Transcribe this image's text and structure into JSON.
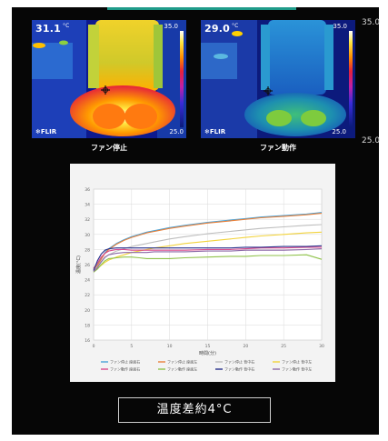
{
  "thermal_left": {
    "reading": "31.1",
    "reading_prefix": "",
    "unit": "°C",
    "scale_max": "35.0",
    "scale_min": "25.0",
    "brand": "FLIR",
    "caption": "ファン停止"
  },
  "thermal_right": {
    "reading": "29.0",
    "reading_prefix": "",
    "unit": "°C",
    "scale_max": "35.0",
    "scale_min": "25.0",
    "brand": "FLIR",
    "caption": "ファン動作"
  },
  "outer_scale": {
    "max": "35.0",
    "min": "25.0"
  },
  "summary": "温度差約4°C",
  "chart_data": {
    "type": "line",
    "title": "",
    "xlabel": "時間(分)",
    "ylabel": "温度(°C)",
    "xlim": [
      0,
      30
    ],
    "ylim": [
      16,
      36
    ],
    "xticks": [
      0,
      5,
      10,
      15,
      20,
      25,
      30
    ],
    "yticks": [
      16,
      18,
      20,
      22,
      24,
      26,
      28,
      30,
      32,
      34,
      36
    ],
    "grid": true,
    "legend_position": "bottom",
    "x": [
      0,
      0.5,
      1,
      1.5,
      2,
      3,
      4,
      5,
      6,
      7,
      8,
      10,
      12,
      15,
      18,
      20,
      22,
      25,
      28,
      30
    ],
    "series": [
      {
        "name": "ファン停止 座面右",
        "color": "#4aa3d8",
        "values": [
          25.5,
          26.0,
          26.8,
          27.6,
          28.1,
          28.8,
          29.3,
          29.7,
          30.0,
          30.3,
          30.5,
          30.9,
          31.2,
          31.6,
          31.9,
          32.1,
          32.3,
          32.5,
          32.7,
          32.9
        ]
      },
      {
        "name": "ファン停止 座面左",
        "color": "#e8803a",
        "values": [
          25.4,
          25.9,
          26.7,
          27.5,
          28.0,
          28.7,
          29.2,
          29.6,
          29.9,
          30.2,
          30.4,
          30.8,
          31.1,
          31.5,
          31.8,
          32.0,
          32.2,
          32.4,
          32.6,
          32.8
        ]
      },
      {
        "name": "ファン停止 背中右",
        "color": "#bdbdbd",
        "values": [
          25.3,
          25.7,
          26.3,
          26.9,
          27.3,
          27.8,
          28.1,
          28.4,
          28.6,
          28.8,
          29.0,
          29.4,
          29.7,
          30.1,
          30.4,
          30.6,
          30.8,
          31.0,
          31.2,
          31.3
        ]
      },
      {
        "name": "ファン停止 背中左",
        "color": "#f2d33c",
        "values": [
          25.2,
          25.5,
          25.9,
          26.3,
          26.6,
          27.0,
          27.3,
          27.6,
          27.8,
          28.0,
          28.2,
          28.5,
          28.8,
          29.1,
          29.4,
          29.6,
          29.8,
          30.0,
          30.2,
          30.3
        ]
      },
      {
        "name": "ファン動作 座面右",
        "color": "#d94a8c",
        "values": [
          25.5,
          26.2,
          27.0,
          27.5,
          27.8,
          28.0,
          28.0,
          27.9,
          27.9,
          27.9,
          27.9,
          27.9,
          27.9,
          28.0,
          28.0,
          28.1,
          28.2,
          28.2,
          28.3,
          28.3
        ]
      },
      {
        "name": "ファン動作 座面左",
        "color": "#8fc24a",
        "values": [
          25.0,
          25.4,
          26.0,
          26.5,
          26.8,
          26.9,
          27.0,
          27.0,
          26.9,
          26.8,
          26.8,
          26.8,
          26.9,
          27.0,
          27.1,
          27.1,
          27.2,
          27.2,
          27.3,
          26.7
        ]
      },
      {
        "name": "ファン動作 背中右",
        "color": "#262f8a",
        "values": [
          25.2,
          26.5,
          27.4,
          27.9,
          28.1,
          28.2,
          28.2,
          28.2,
          28.2,
          28.2,
          28.2,
          28.2,
          28.2,
          28.2,
          28.2,
          28.3,
          28.3,
          28.4,
          28.4,
          28.5
        ]
      },
      {
        "name": "ファン動作 背中左",
        "color": "#8e6aa8",
        "values": [
          25.1,
          25.6,
          26.4,
          27.0,
          27.3,
          27.5,
          27.6,
          27.6,
          27.6,
          27.6,
          27.7,
          27.7,
          27.7,
          27.8,
          27.8,
          27.9,
          27.9,
          27.9,
          28.0,
          28.1
        ]
      }
    ]
  }
}
